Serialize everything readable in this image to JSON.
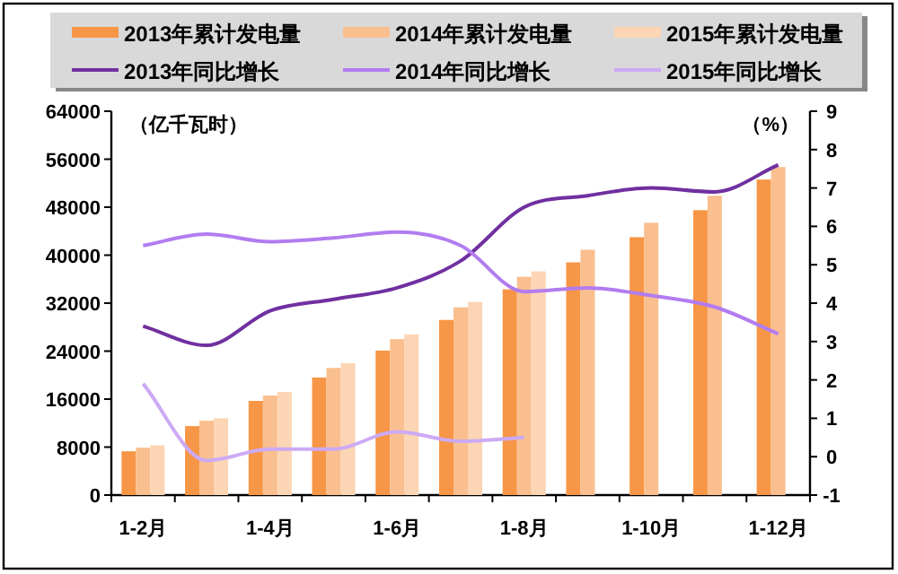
{
  "chart_data": {
    "type": "bar",
    "categories": [
      "1-2月",
      null,
      "1-4月",
      null,
      "1-6月",
      null,
      "1-8月",
      null,
      "1-10月",
      null,
      "1-12月"
    ],
    "series": [
      {
        "name": "2013年累计发电量",
        "color": "#f79646",
        "values": [
          7300,
          11500,
          15700,
          19600,
          24100,
          29200,
          34300,
          38800,
          43000,
          47500,
          52600
        ]
      },
      {
        "name": "2014年累计发电量",
        "color": "#fabf8f",
        "values": [
          7900,
          12400,
          16600,
          21200,
          26000,
          31300,
          36400,
          40900,
          45400,
          49900,
          54700
        ]
      },
      {
        "name": "2015年累计发电量",
        "color": "#fcd5b4",
        "values": [
          8300,
          12800,
          17200,
          22000,
          26800,
          32200,
          37300,
          null,
          null,
          null,
          null
        ]
      },
      {
        "name": "2013年同比增长",
        "type": "line",
        "axis": "y2",
        "color": "#7030a0",
        "values": [
          3.4,
          2.9,
          3.8,
          4.1,
          4.4,
          5.1,
          6.5,
          6.8,
          7.0,
          6.9,
          7.6
        ]
      },
      {
        "name": "2014年同比增长",
        "type": "line",
        "axis": "y2",
        "color": "#b27cf0",
        "values": [
          5.5,
          5.8,
          5.6,
          5.7,
          5.85,
          5.5,
          4.3,
          4.4,
          4.2,
          3.9,
          3.2
        ]
      },
      {
        "name": "2015年同比增长",
        "type": "line",
        "axis": "y2",
        "color": "#ccaaf5",
        "values": [
          1.9,
          -0.1,
          0.2,
          0.2,
          0.65,
          0.4,
          0.5,
          null,
          null,
          null,
          null
        ]
      }
    ],
    "ylabel": "（亿千瓦时）",
    "y2label": "（%）",
    "ylim": [
      0,
      64000
    ],
    "yticks": [
      0,
      8000,
      16000,
      24000,
      32000,
      40000,
      48000,
      56000,
      64000
    ],
    "y2lim": [
      -1,
      9
    ],
    "y2ticks": [
      -1,
      0,
      1,
      2,
      3,
      4,
      5,
      6,
      7,
      8,
      9
    ],
    "legend": "top",
    "grid": false
  }
}
